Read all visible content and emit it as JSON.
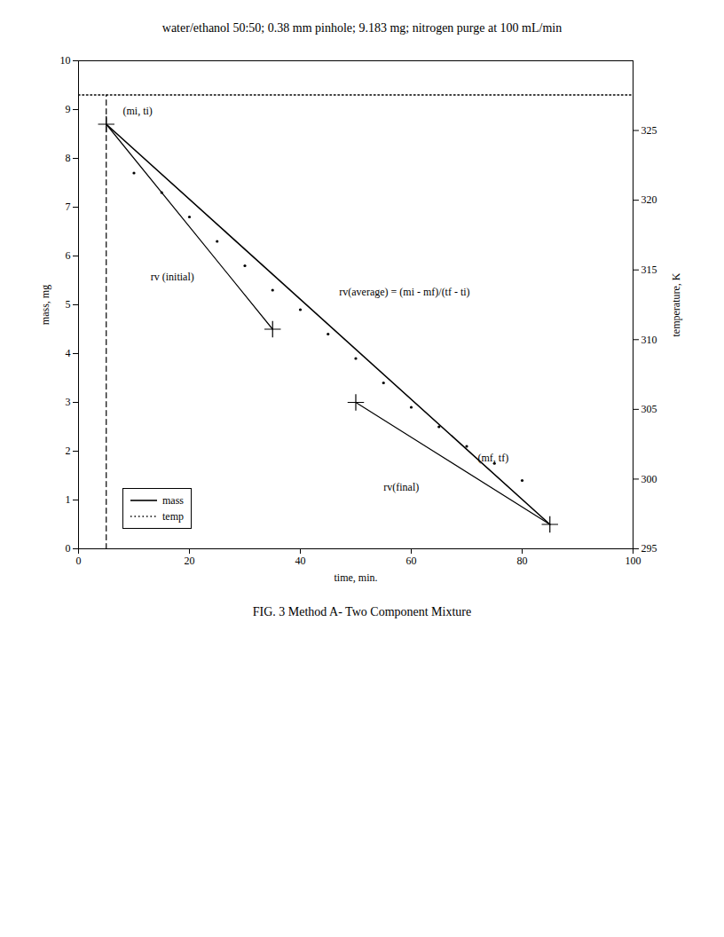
{
  "chart_data": {
    "type": "line",
    "title": "water/ethanol 50:50; 0.38 mm pinhole; 9.183 mg;  nitrogen purge at 100 mL/min",
    "caption": "FIG. 3 Method A- Two Component Mixture",
    "xlabel": "time, min.",
    "ylabel": "mass, mg",
    "y2label": "temperature, K",
    "xlim": [
      0,
      100
    ],
    "xticks": [
      0,
      20,
      40,
      60,
      80,
      100
    ],
    "ylim": [
      0,
      10
    ],
    "yticks": [
      0,
      1,
      2,
      3,
      4,
      5,
      6,
      7,
      8,
      9,
      10
    ],
    "y2lim": [
      295,
      330
    ],
    "y2ticks": [
      295,
      300,
      305,
      310,
      315,
      320,
      325
    ],
    "color": "#000000",
    "grid": false,
    "legend": "lower left",
    "series": [
      {
        "name": "mass",
        "x": [
          5,
          85
        ],
        "values": [
          8.7,
          0.5
        ],
        "line_style": "solid"
      },
      {
        "name": "temp",
        "x": [
          0,
          100
        ],
        "values": [
          9.3,
          9.3
        ],
        "line_style": "dotted"
      },
      {
        "x": [
          5,
          35
        ],
        "values": [
          8.7,
          4.5
        ],
        "line_style": "solid"
      },
      {
        "x": [
          50,
          85
        ],
        "values": [
          3.0,
          0.5
        ],
        "line_style": "solid"
      },
      {
        "x": [
          5,
          5
        ],
        "values": [
          0,
          9.3
        ],
        "line_style": "dashed"
      },
      {
        "type": "scatter",
        "marker": "dot",
        "x": [
          10,
          15,
          20,
          25,
          30,
          35,
          40,
          45,
          50,
          55,
          60,
          65,
          70,
          75,
          80
        ],
        "values": [
          7.7,
          7.3,
          6.8,
          6.3,
          5.8,
          5.3,
          4.9,
          4.4,
          3.9,
          3.4,
          2.9,
          2.5,
          2.1,
          1.75,
          1.4
        ]
      },
      {
        "type": "scatter",
        "marker": "plus",
        "x": [
          5,
          35,
          50,
          85
        ],
        "values": [
          8.7,
          4.5,
          3.0,
          0.5
        ]
      }
    ],
    "annotations": [
      {
        "text": "(mi, ti)",
        "x": 8,
        "y": 8.9
      },
      {
        "text": "rv (initial)",
        "x": 13,
        "y": 5.5
      },
      {
        "text": "rv(average) = (mi - mf)/(tf - ti)",
        "x": 47,
        "y": 5.2
      },
      {
        "text": "(mf, tf)",
        "x": 72,
        "y": 1.8
      },
      {
        "text": "rv(final)",
        "x": 55,
        "y": 1.2
      }
    ]
  }
}
